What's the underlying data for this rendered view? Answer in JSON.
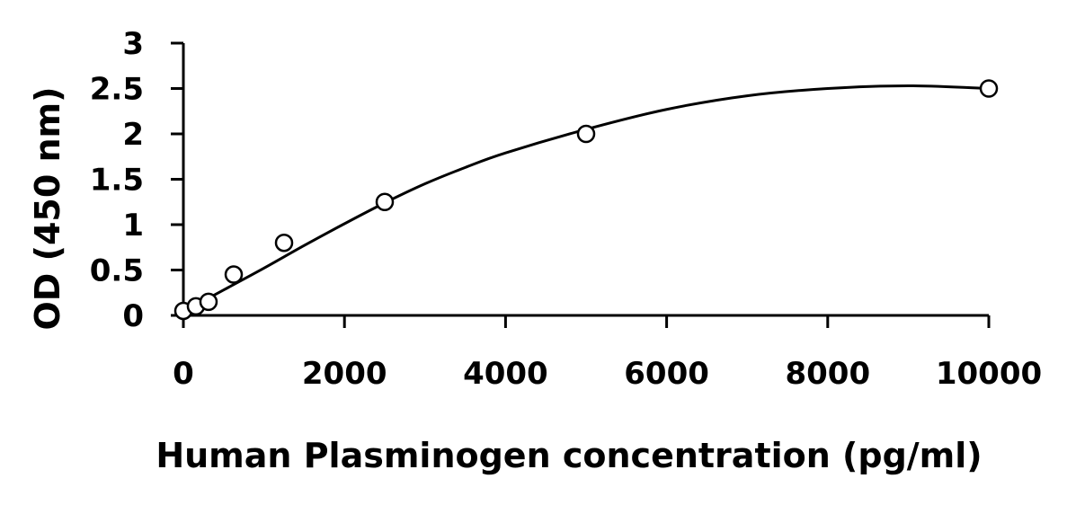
{
  "chart_data": {
    "type": "scatter",
    "xlabel": "Human Plasminogen concentration (pg/ml)",
    "ylabel": "OD (450 nm)",
    "xlim": [
      0,
      10000
    ],
    "ylim": [
      0,
      3
    ],
    "x_ticks": [
      0,
      2000,
      4000,
      6000,
      8000,
      10000
    ],
    "x_tick_labels": [
      "0",
      "2000",
      "4000",
      "6000",
      "8000",
      "10000"
    ],
    "y_ticks": [
      0,
      0.5,
      1,
      1.5,
      2,
      2.5,
      3
    ],
    "y_tick_labels": [
      "0",
      "0.5",
      "1",
      "1.5",
      "2",
      "2.5",
      "3"
    ],
    "grid": false,
    "series": [
      {
        "marker": "open-circle",
        "points": [
          {
            "x": 0,
            "y": 0.05
          },
          {
            "x": 156,
            "y": 0.1
          },
          {
            "x": 312,
            "y": 0.15
          },
          {
            "x": 625,
            "y": 0.45
          },
          {
            "x": 1250,
            "y": 0.8
          },
          {
            "x": 2500,
            "y": 1.25
          },
          {
            "x": 5000,
            "y": 2.0
          },
          {
            "x": 10000,
            "y": 2.5
          }
        ]
      }
    ],
    "fit_curve": {
      "type": "smooth",
      "points": [
        {
          "x": 0,
          "y": 0.04
        },
        {
          "x": 500,
          "y": 0.28
        },
        {
          "x": 1000,
          "y": 0.52
        },
        {
          "x": 1500,
          "y": 0.77
        },
        {
          "x": 2000,
          "y": 1.01
        },
        {
          "x": 2500,
          "y": 1.24
        },
        {
          "x": 3000,
          "y": 1.45
        },
        {
          "x": 3500,
          "y": 1.63
        },
        {
          "x": 4000,
          "y": 1.79
        },
        {
          "x": 5000,
          "y": 2.05
        },
        {
          "x": 6000,
          "y": 2.27
        },
        {
          "x": 7000,
          "y": 2.42
        },
        {
          "x": 8000,
          "y": 2.5
        },
        {
          "x": 9000,
          "y": 2.53
        },
        {
          "x": 10000,
          "y": 2.5
        }
      ]
    }
  }
}
